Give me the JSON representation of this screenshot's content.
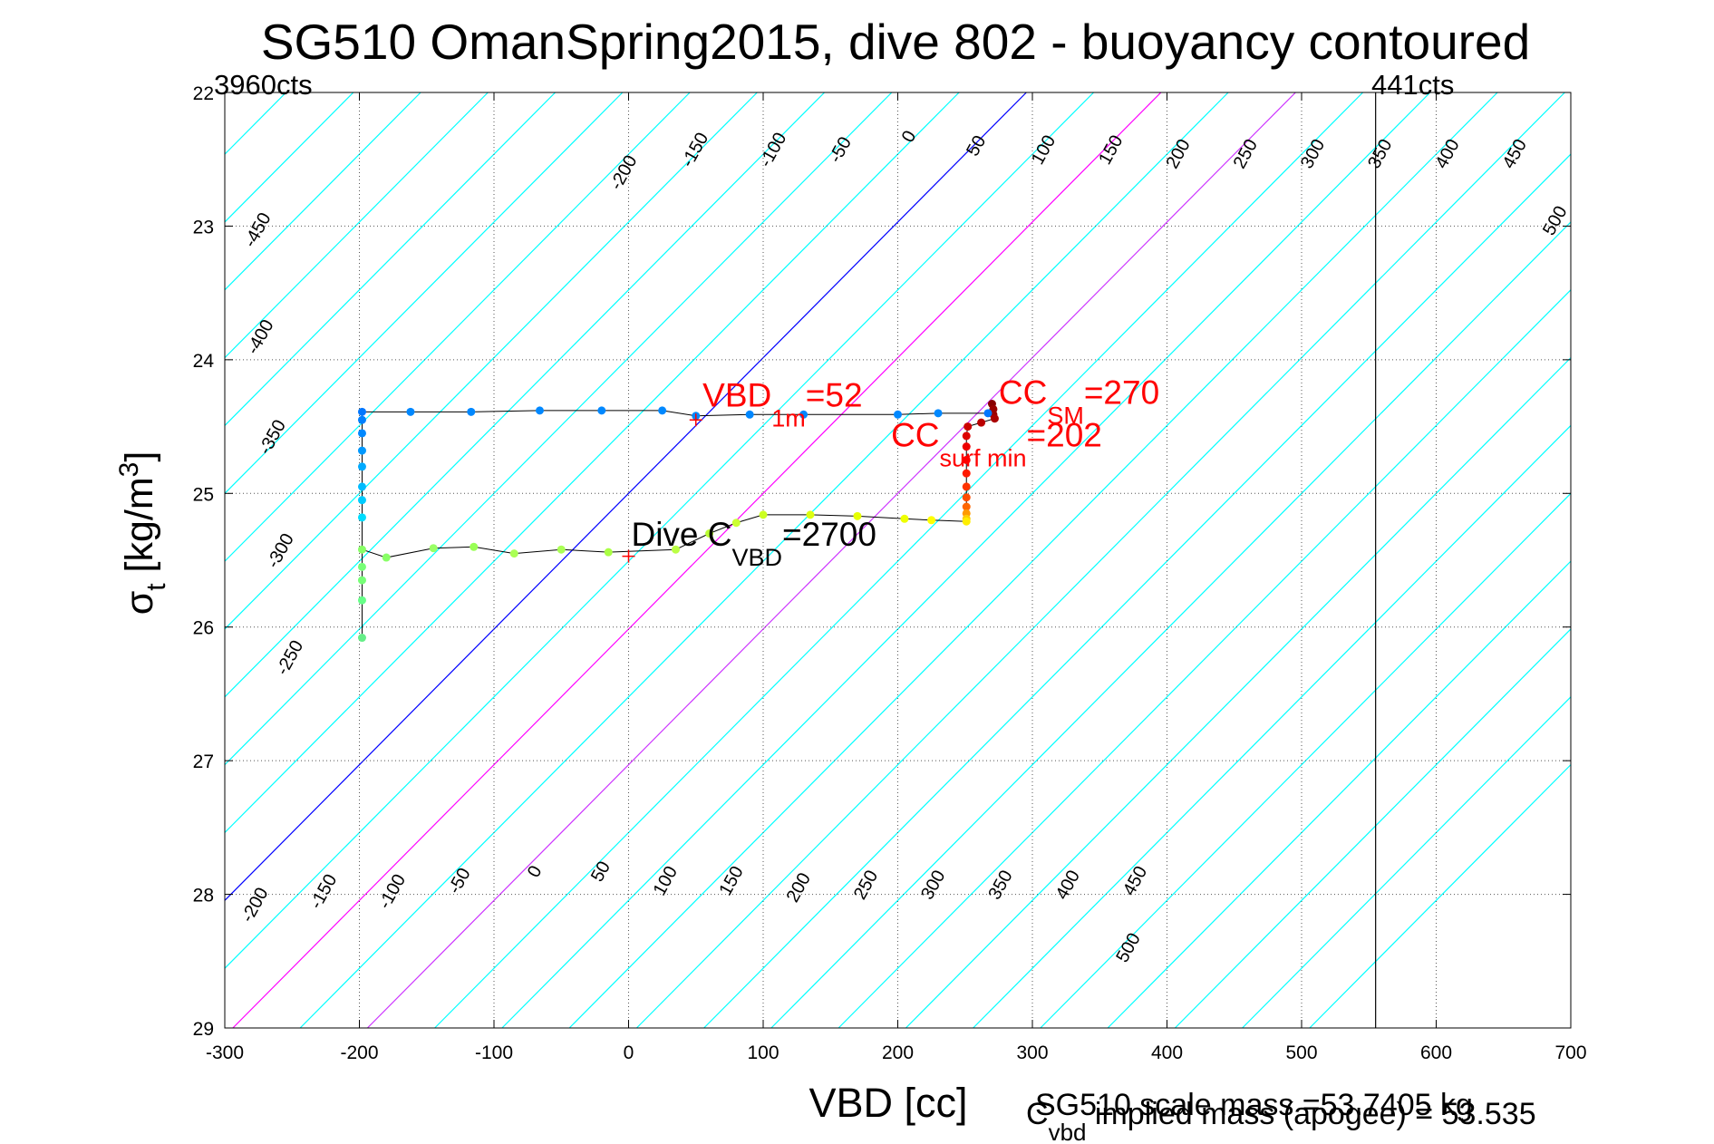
{
  "chart_data": {
    "type": "scatter",
    "title": "SG510 OmanSpring2015, dive 802 - buoyancy contoured",
    "xlabel": "VBD [cc]",
    "ylabel": {
      "main": "σ",
      "sub": "t",
      "unit_pre": " [kg/m",
      "unit_sup": "3",
      "unit_post": "]"
    },
    "xlim": [
      -300,
      700
    ],
    "ylim": [
      22,
      29
    ],
    "y_reversed": true,
    "grid": true,
    "xticks": [
      -300,
      -200,
      -100,
      0,
      100,
      200,
      300,
      400,
      500,
      600,
      700
    ],
    "yticks": [
      22,
      23,
      24,
      25,
      26,
      27,
      28,
      29
    ],
    "limit_labels": {
      "left": "3960cts",
      "right": "441cts"
    },
    "limit_lines": [
      {
        "label": "441cts",
        "x": 555
      }
    ],
    "contour_slope_cc_per_sigma": 98.5,
    "contour_values": [
      -450,
      -400,
      -350,
      -300,
      -250,
      -200,
      -150,
      -100,
      -50,
      0,
      50,
      100,
      150,
      200,
      250,
      300,
      350,
      400,
      450,
      500
    ],
    "highlight_contours": [
      {
        "value": 0,
        "color": "#0000ff"
      },
      {
        "value": 100,
        "color": "#ff00ff"
      },
      {
        "value": 200,
        "color": "#cc33ff"
      }
    ],
    "contour_color": "#00ffff",
    "contour_labels": [
      {
        "value": -450,
        "x": -272,
        "y": 23.05
      },
      {
        "value": -400,
        "x": -270,
        "y": 23.85
      },
      {
        "value": -350,
        "x": -261,
        "y": 24.6
      },
      {
        "value": -300,
        "x": -255,
        "y": 25.45
      },
      {
        "value": -250,
        "x": -248,
        "y": 26.25
      },
      {
        "value": -200,
        "x": -274,
        "y": 28.1
      },
      {
        "value": -150,
        "x": -223,
        "y": 28.0
      },
      {
        "value": -100,
        "x": -172,
        "y": 28.0
      },
      {
        "value": -50,
        "x": -122,
        "y": 27.92
      },
      {
        "value": 0,
        "x": -66,
        "y": 27.85
      },
      {
        "value": 50,
        "x": -17,
        "y": 27.85
      },
      {
        "value": 100,
        "x": 31,
        "y": 27.92
      },
      {
        "value": 150,
        "x": 80,
        "y": 27.92
      },
      {
        "value": 200,
        "x": 130,
        "y": 27.97
      },
      {
        "value": 250,
        "x": 180,
        "y": 27.95
      },
      {
        "value": 300,
        "x": 230,
        "y": 27.95
      },
      {
        "value": 350,
        "x": 280,
        "y": 27.95
      },
      {
        "value": 400,
        "x": 330,
        "y": 27.95
      },
      {
        "value": 450,
        "x": 380,
        "y": 27.92
      },
      {
        "value": 500,
        "x": 375,
        "y": 28.42
      },
      {
        "value": -200,
        "x": 0,
        "y": 22.62
      },
      {
        "value": -150,
        "x": 53,
        "y": 22.45
      },
      {
        "value": -100,
        "x": 111,
        "y": 22.45
      },
      {
        "value": -50,
        "x": 161,
        "y": 22.45
      },
      {
        "value": 0,
        "x": 212,
        "y": 22.35
      },
      {
        "value": 50,
        "x": 262,
        "y": 22.42
      },
      {
        "value": 100,
        "x": 312,
        "y": 22.45
      },
      {
        "value": 150,
        "x": 362,
        "y": 22.45
      },
      {
        "value": 200,
        "x": 412,
        "y": 22.48
      },
      {
        "value": 250,
        "x": 462,
        "y": 22.48
      },
      {
        "value": 300,
        "x": 512,
        "y": 22.48
      },
      {
        "value": 350,
        "x": 562,
        "y": 22.48
      },
      {
        "value": 400,
        "x": 612,
        "y": 22.48
      },
      {
        "value": 450,
        "x": 662,
        "y": 22.48
      },
      {
        "value": 500,
        "x": 692,
        "y": 22.98
      }
    ],
    "series": [
      {
        "line_color": "#000000",
        "points": [
          {
            "x": 270,
            "y": 24.33,
            "color": "#880000"
          },
          {
            "x": 271,
            "y": 24.37,
            "color": "#990000"
          },
          {
            "x": 271,
            "y": 24.41,
            "color": "#990000"
          },
          {
            "x": 272,
            "y": 24.44,
            "color": "#aa0000"
          },
          {
            "x": 262,
            "y": 24.47,
            "color": "#bb0000"
          },
          {
            "x": 252,
            "y": 24.5,
            "color": "#cc0000"
          },
          {
            "x": 251,
            "y": 24.57,
            "color": "#dd0000"
          },
          {
            "x": 251,
            "y": 24.65,
            "color": "#ee0000"
          },
          {
            "x": 251,
            "y": 24.75,
            "color": "#ff0000"
          },
          {
            "x": 251,
            "y": 24.85,
            "color": "#ff1a00"
          },
          {
            "x": 251,
            "y": 24.95,
            "color": "#ff3300"
          },
          {
            "x": 251,
            "y": 25.03,
            "color": "#ff4d00"
          },
          {
            "x": 251,
            "y": 25.1,
            "color": "#ff6600"
          },
          {
            "x": 251,
            "y": 25.15,
            "color": "#ff9900"
          },
          {
            "x": 251,
            "y": 25.19,
            "color": "#ffcc00"
          },
          {
            "x": 251,
            "y": 25.21,
            "color": "#ffee00"
          },
          {
            "x": 225,
            "y": 25.2,
            "color": "#ffff00"
          },
          {
            "x": 205,
            "y": 25.19,
            "color": "#eeff00"
          },
          {
            "x": 170,
            "y": 25.17,
            "color": "#e6ff00"
          },
          {
            "x": 135,
            "y": 25.16,
            "color": "#ddff11"
          },
          {
            "x": 100,
            "y": 25.16,
            "color": "#ccff22"
          },
          {
            "x": 80,
            "y": 25.22,
            "color": "#ccff33"
          },
          {
            "x": 60,
            "y": 25.3,
            "color": "#bbff33"
          },
          {
            "x": 35,
            "y": 25.42,
            "color": "#bbff44"
          },
          {
            "x": -15,
            "y": 25.44,
            "color": "#aaff44"
          },
          {
            "x": -50,
            "y": 25.42,
            "color": "#aaff55"
          },
          {
            "x": -85,
            "y": 25.45,
            "color": "#aaff55"
          },
          {
            "x": -115,
            "y": 25.4,
            "color": "#99ff55"
          },
          {
            "x": -145,
            "y": 25.41,
            "color": "#99ff66"
          },
          {
            "x": -180,
            "y": 25.48,
            "color": "#88ff66"
          },
          {
            "x": -198,
            "y": 25.42,
            "color": "#88ff66"
          },
          {
            "x": -198,
            "y": 25.55,
            "color": "#77ff77"
          },
          {
            "x": -198,
            "y": 25.65,
            "color": "#77ff77"
          },
          {
            "x": -198,
            "y": 25.8,
            "color": "#66ff88"
          },
          {
            "x": -198,
            "y": 26.08,
            "color": "#66ee88"
          },
          {
            "x": -198,
            "y": 25.18,
            "color": "#00ddff"
          },
          {
            "x": -198,
            "y": 25.05,
            "color": "#00ccff"
          },
          {
            "x": -198,
            "y": 24.95,
            "color": "#00bbff"
          },
          {
            "x": -198,
            "y": 24.8,
            "color": "#00aaff"
          },
          {
            "x": -198,
            "y": 24.68,
            "color": "#0099ff"
          },
          {
            "x": -198,
            "y": 24.55,
            "color": "#0088ff"
          },
          {
            "x": -198,
            "y": 24.45,
            "color": "#0080ff"
          },
          {
            "x": -198,
            "y": 24.39,
            "color": "#0077ff"
          },
          {
            "x": -162,
            "y": 24.39,
            "color": "#0088ff"
          },
          {
            "x": -117,
            "y": 24.39,
            "color": "#0088ff"
          },
          {
            "x": -66,
            "y": 24.38,
            "color": "#0088ff"
          },
          {
            "x": -20,
            "y": 24.38,
            "color": "#0088ff"
          },
          {
            "x": 25,
            "y": 24.38,
            "color": "#0088ff"
          },
          {
            "x": 50,
            "y": 24.42,
            "color": "#0088ff"
          },
          {
            "x": 90,
            "y": 24.41,
            "color": "#0088ff"
          },
          {
            "x": 130,
            "y": 24.41,
            "color": "#0088ff"
          },
          {
            "x": 200,
            "y": 24.41,
            "color": "#0088ff"
          },
          {
            "x": 230,
            "y": 24.4,
            "color": "#0088ff"
          },
          {
            "x": 267,
            "y": 24.4,
            "color": "#0077ff"
          }
        ]
      }
    ],
    "markers": [
      {
        "x": 50,
        "y": 24.45,
        "color": "#ff0000"
      },
      {
        "x": 0,
        "y": 25.47,
        "color": "#ff0000"
      }
    ],
    "annotations": [
      {
        "main": "VBD",
        "sub": "1m",
        "rest": "=52",
        "x": 55,
        "y": 24.35,
        "color": "#ff0000"
      },
      {
        "main": "CC",
        "sub": "SM",
        "rest": "=270",
        "x": 275,
        "y": 24.33,
        "color": "#ff0000"
      },
      {
        "main": "CC",
        "sub": "surf min",
        "rest": "=202",
        "x": 195,
        "y": 24.65,
        "color": "#ff0000"
      },
      {
        "main": "Dive C",
        "sub": "VBD",
        "rest": "=2700",
        "x": 2,
        "y": 25.39,
        "color": "#000000"
      }
    ],
    "footer": {
      "scale_mass": "SG510 scale mass =53.7405 kg",
      "cvbd_main": "C",
      "cvbd_sub": "vbd",
      "cvbd_rest": " implied mass (apogee) = 53.535"
    }
  }
}
